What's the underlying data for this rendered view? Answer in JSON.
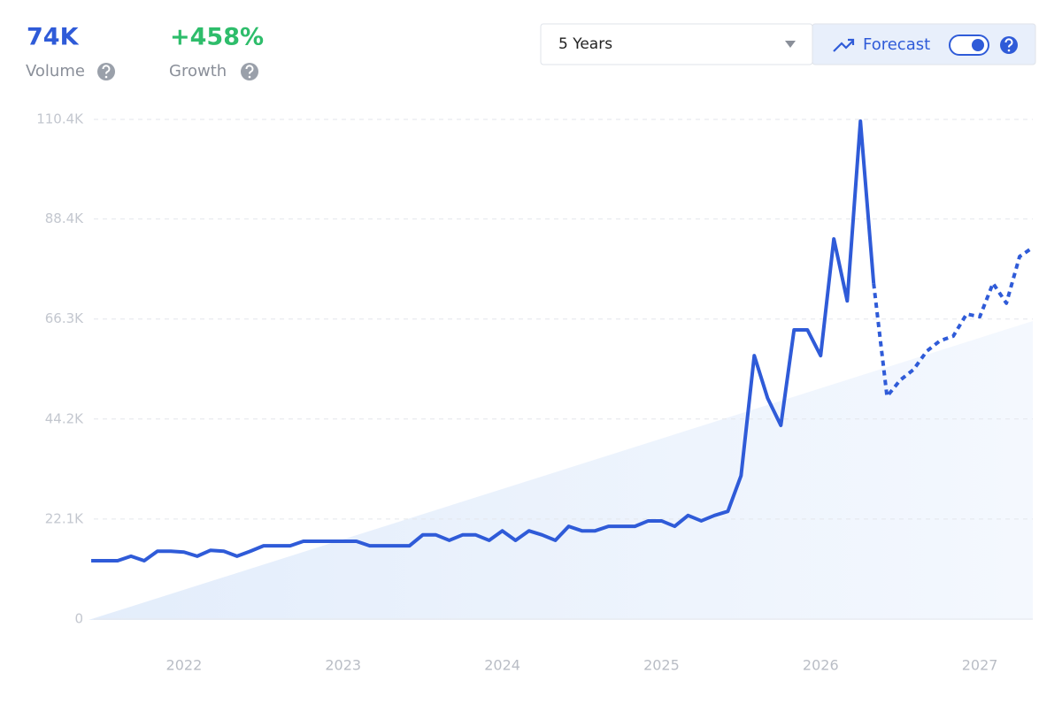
{
  "header": {
    "volume": "74K",
    "volume_label": "Volume",
    "growth": "+458%",
    "growth_label": "Growth",
    "range": "5 Years",
    "forecast": "Forecast"
  },
  "chart_data": {
    "type": "line",
    "x": [
      2021.417,
      2021.5,
      2021.583,
      2021.667,
      2021.75,
      2021.833,
      2021.917,
      2022,
      2022.083,
      2022.167,
      2022.25,
      2022.333,
      2022.417,
      2022.5,
      2022.583,
      2022.667,
      2022.75,
      2022.833,
      2022.917,
      2023,
      2023.083,
      2023.167,
      2023.25,
      2023.333,
      2023.417,
      2023.5,
      2023.583,
      2023.667,
      2023.75,
      2023.833,
      2023.917,
      2024,
      2024.083,
      2024.167,
      2024.25,
      2024.333,
      2024.417,
      2024.5,
      2024.583,
      2024.667,
      2024.75,
      2024.833,
      2024.917,
      2025,
      2025.083,
      2025.167,
      2025.25,
      2025.333,
      2025.417,
      2025.5,
      2025.583,
      2025.667,
      2025.75,
      2025.833,
      2025.917,
      2026,
      2026.083,
      2026.167,
      2026.25,
      2026.333,
      2026.417,
      2026.5,
      2026.583,
      2026.667,
      2026.75,
      2026.833,
      2026.917,
      2027,
      2027.083,
      2027.167,
      2027.25,
      2027.333
    ],
    "series": [
      {
        "color": "#2f5bd8",
        "dashed": false,
        "values": [
          12900,
          12900,
          12900,
          13900,
          12900,
          15000,
          15000,
          14800,
          13900,
          15200,
          15000,
          13900,
          15000,
          16200,
          16200,
          16200,
          17200,
          17200,
          17200,
          17200,
          17200,
          16200,
          16200,
          16200,
          16200,
          18600,
          18600,
          17400,
          18600,
          18600,
          17400,
          19500,
          17400,
          19500,
          18600,
          17400,
          20500,
          19500,
          19500,
          20500,
          20500,
          20500,
          21700,
          21700,
          20500,
          22900,
          21700,
          22900,
          23800,
          31700,
          58200,
          48800,
          42800,
          63900,
          63900,
          58200,
          84000,
          70300,
          110000,
          74200,
          null,
          null,
          null,
          null,
          null,
          null,
          null,
          null,
          null,
          null,
          null,
          null
        ]
      },
      {
        "color": "#2f5bd8",
        "dashed": true,
        "values": [
          null,
          null,
          null,
          null,
          null,
          null,
          null,
          null,
          null,
          null,
          null,
          null,
          null,
          null,
          null,
          null,
          null,
          null,
          null,
          null,
          null,
          null,
          null,
          null,
          null,
          null,
          null,
          null,
          null,
          null,
          null,
          null,
          null,
          null,
          null,
          null,
          null,
          null,
          null,
          null,
          null,
          null,
          null,
          null,
          null,
          null,
          null,
          null,
          null,
          null,
          null,
          null,
          null,
          null,
          null,
          null,
          null,
          null,
          null,
          74200,
          49200,
          52800,
          55100,
          59200,
          61500,
          62500,
          67400,
          66800,
          74200,
          69800,
          80100,
          82100
        ]
      }
    ],
    "xlim": [
      2021.4,
      2027.333
    ],
    "xticks": [
      2022,
      2023,
      2024,
      2025,
      2026,
      2027
    ],
    "ylim": [
      0,
      110400
    ],
    "yticks": [
      0,
      {
        "value": 22100,
        "label": "22.1K"
      },
      {
        "value": 44200,
        "label": "44.2K"
      },
      {
        "value": 66300,
        "label": "66.3K"
      },
      {
        "value": 88400,
        "label": "88.4K"
      },
      {
        "value": 110400,
        "label": "110.4K"
      }
    ],
    "grid": true
  }
}
